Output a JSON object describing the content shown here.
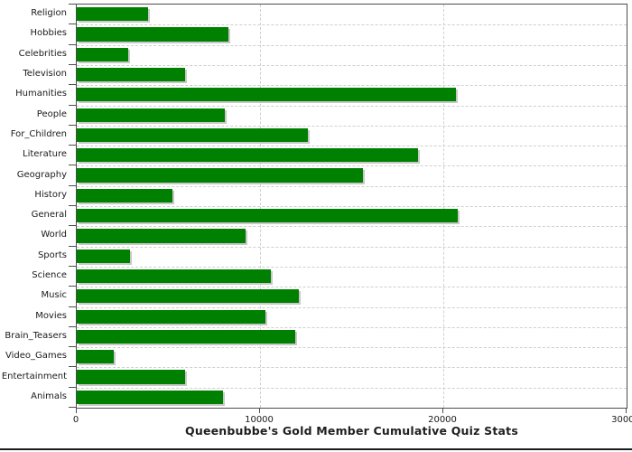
{
  "window": {
    "background": "#ffffff"
  },
  "chart_data": {
    "type": "bar",
    "orientation": "horizontal",
    "title": "Queenbubbe's Gold Member Cumulative Quiz Stats",
    "categories": [
      "Religion",
      "Hobbies",
      "Celebrities",
      "Television",
      "Humanities",
      "People",
      "For_Children",
      "Literature",
      "Geography",
      "History",
      "General",
      "World",
      "Sports",
      "Science",
      "Music",
      "Movies",
      "Brain_Teasers",
      "Video_Games",
      "Entertainment",
      "Animals"
    ],
    "values": [
      3900,
      8300,
      2800,
      5900,
      20700,
      8100,
      12600,
      18600,
      15600,
      5200,
      20800,
      9200,
      2900,
      10600,
      12100,
      10300,
      11900,
      2000,
      5900,
      8000
    ],
    "xlabel": "",
    "ylabel": "",
    "xlim": [
      0,
      30000
    ],
    "x_ticks": [
      0,
      10000,
      20000,
      30000
    ],
    "x_tick_labels": [
      "0",
      "10000",
      "20000",
      "30000"
    ],
    "grid": "dashed",
    "legend": "none",
    "colors": {
      "bar": "#008000",
      "bar_shadow": "#c8c8c8",
      "gridline": "#cfcfcf",
      "plot_border": "#4d4d4d",
      "text": "#1a1a1a"
    }
  }
}
